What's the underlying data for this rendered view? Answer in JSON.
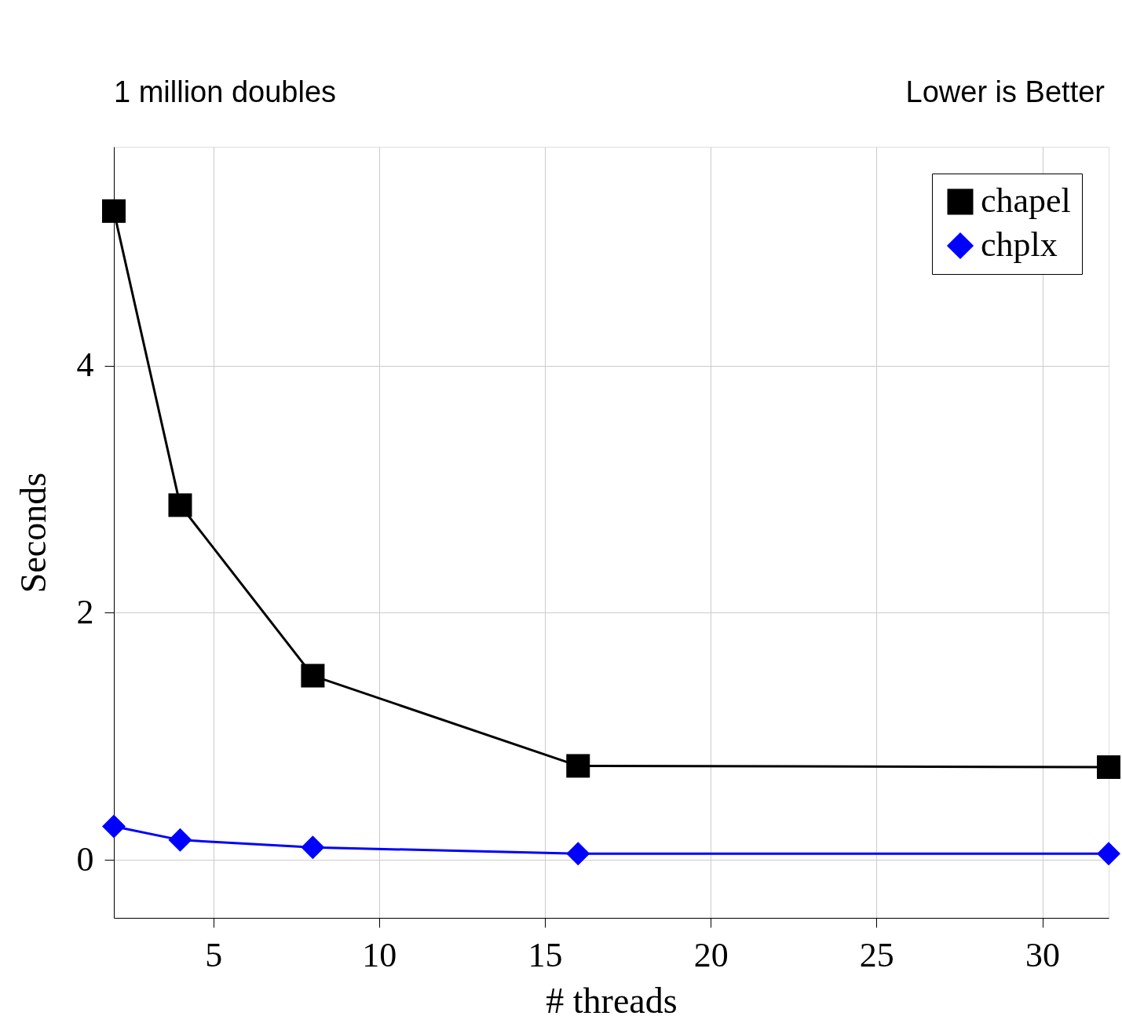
{
  "chart_data": {
    "type": "line",
    "title": "1 million doubles",
    "annotations": [
      "Lower is Better"
    ],
    "xlabel": "# threads",
    "ylabel": "Seconds",
    "x": [
      2,
      4,
      8,
      16,
      32
    ],
    "series": [
      {
        "name": "chapel",
        "color": "#000000",
        "marker": "square",
        "values": [
          5.25,
          2.87,
          1.49,
          0.76,
          0.75
        ]
      },
      {
        "name": "chplx",
        "color": "#0000ff",
        "marker": "diamond",
        "values": [
          0.27,
          0.16,
          0.1,
          0.05,
          0.05
        ]
      }
    ],
    "xlim": [
      2,
      32
    ],
    "ylim": [
      -0.47,
      5.77
    ],
    "xticks": [
      5,
      10,
      15,
      20,
      25,
      30
    ],
    "yticks": [
      0,
      2,
      4
    ],
    "grid": true,
    "legend": "top right",
    "line_style": "solid"
  }
}
